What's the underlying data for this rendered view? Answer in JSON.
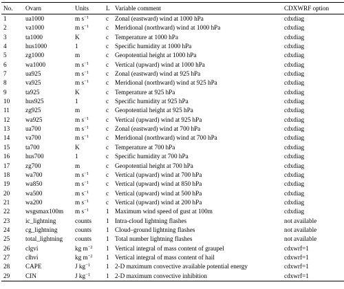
{
  "table": {
    "headers": {
      "no": "No.",
      "ovarn": "Ovarn",
      "units": "Units",
      "l": "L",
      "comment": "Variable comment",
      "option": "CDXWRF option"
    },
    "rows": [
      {
        "no": "1",
        "ovarn": "ua1000",
        "units": "m s",
        "unit_exp": "−1",
        "l": "c",
        "comment": "Zonal (eastward) wind at 1000 hPa",
        "option": "cdxdiag"
      },
      {
        "no": "2",
        "ovarn": "va1000",
        "units": "m s",
        "unit_exp": "−1",
        "l": "c",
        "comment": "Meridional (northward) wind at 1000 hPa",
        "option": "cdxdiag"
      },
      {
        "no": "3",
        "ovarn": "ta1000",
        "units": "K",
        "unit_exp": "",
        "l": "c",
        "comment": "Temperature at 1000 hPa",
        "option": "cdxdiag"
      },
      {
        "no": "4",
        "ovarn": "hus1000",
        "units": "1",
        "unit_exp": "",
        "l": "c",
        "comment": "Specific humidity at 1000 hPa",
        "option": "cdxdiag"
      },
      {
        "no": "5",
        "ovarn": "zg1000",
        "units": "m",
        "unit_exp": "",
        "l": "c",
        "comment": "Geopotential height at 1000 hPa",
        "option": "cdxdiag"
      },
      {
        "no": "6",
        "ovarn": "wa1000",
        "units": "m s",
        "unit_exp": "−1",
        "l": "c",
        "comment": "Vertical (upward) wind at 1000 hPa",
        "option": "cdxdiag"
      },
      {
        "no": "7",
        "ovarn": "ua925",
        "units": "m s",
        "unit_exp": "−1",
        "l": "c",
        "comment": "Zonal (eastward) wind at 925 hPa",
        "option": "cdxdiag"
      },
      {
        "no": "8",
        "ovarn": "va925",
        "units": "m s",
        "unit_exp": "−1",
        "l": "c",
        "comment": "Meridional (northward) wind at 925 hPa",
        "option": "cdxdiag"
      },
      {
        "no": "9",
        "ovarn": "ta925",
        "units": "K",
        "unit_exp": "",
        "l": "c",
        "comment": "Temperature at 925 hPa",
        "option": "cdxdiag"
      },
      {
        "no": "10",
        "ovarn": "hus925",
        "units": "1",
        "unit_exp": "",
        "l": "c",
        "comment": "Specific humidity at 925 hPa",
        "option": "cdxdiag"
      },
      {
        "no": "11",
        "ovarn": "zg925",
        "units": "m",
        "unit_exp": "",
        "l": "c",
        "comment": "Geopotential height at 925 hPa",
        "option": "cdxdiag"
      },
      {
        "no": "12",
        "ovarn": "wa925",
        "units": "m s",
        "unit_exp": "−1",
        "l": "c",
        "comment": "Vertical (upward) wind at 925 hPa",
        "option": "cdxdiag"
      },
      {
        "no": "13",
        "ovarn": "ua700",
        "units": "m s",
        "unit_exp": "−1",
        "l": "c",
        "comment": "Zonal (eastward) wind at 700 hPa",
        "option": "cdxdiag"
      },
      {
        "no": "14",
        "ovarn": "va700",
        "units": "m s",
        "unit_exp": "−1",
        "l": "c",
        "comment": "Meridional (northward) wind at 700 hPa",
        "option": "cdxdiag"
      },
      {
        "no": "15",
        "ovarn": "ta700",
        "units": "K",
        "unit_exp": "",
        "l": "c",
        "comment": "Temperature at 700 hPa",
        "option": "cdxdiag"
      },
      {
        "no": "16",
        "ovarn": "hus700",
        "units": "1",
        "unit_exp": "",
        "l": "c",
        "comment": "Specific humidity at 700 hPa",
        "option": "cdxdiag"
      },
      {
        "no": "17",
        "ovarn": "zg700",
        "units": "m",
        "unit_exp": "",
        "l": "c",
        "comment": "Geopotential height at 700 hPa",
        "option": "cdxdiag"
      },
      {
        "no": "18",
        "ovarn": "wa700",
        "units": "m s",
        "unit_exp": "−1",
        "l": "c",
        "comment": "Vertical (upward) wind at 700 hPa",
        "option": "cdxdiag"
      },
      {
        "no": "19",
        "ovarn": "wa850",
        "units": "m s",
        "unit_exp": "−1",
        "l": "c",
        "comment": "Vertical (upward) wind at 850 hPa",
        "option": "cdxdiag"
      },
      {
        "no": "20",
        "ovarn": "wa500",
        "units": "m s",
        "unit_exp": "−1",
        "l": "c",
        "comment": "Vertical (upward) wind at 500 hPa",
        "option": "cdxdiag"
      },
      {
        "no": "21",
        "ovarn": "wa200",
        "units": "m s",
        "unit_exp": "−1",
        "l": "c",
        "comment": "Vertical (upward) wind at 200 hPa",
        "option": "cdxdiag"
      },
      {
        "no": "22",
        "ovarn": "wsgsmax100m",
        "units": "m s",
        "unit_exp": "−1",
        "l": "1",
        "comment": "Maximum wind speed of gust at 100m",
        "option": "cdxdiag"
      },
      {
        "no": "23",
        "ovarn": "ic_lightning",
        "units": "counts",
        "unit_exp": "",
        "l": "1",
        "comment": "Intra-cloud lightning flashes",
        "option": "not available"
      },
      {
        "no": "24",
        "ovarn": "cg_lightning",
        "units": "counts",
        "unit_exp": "",
        "l": "1",
        "comment": "Cloud–ground lightning flashes",
        "option": "not available"
      },
      {
        "no": "25",
        "ovarn": "total_lightning",
        "units": "counts",
        "unit_exp": "",
        "l": "1",
        "comment": "Total number lightning flashes",
        "option": "not available"
      },
      {
        "no": "26",
        "ovarn": "clgvi",
        "units": "kg m",
        "unit_exp": "−2",
        "l": "1",
        "comment": "Vertical integral of mass content of graupel",
        "option": "cdxwrf=1"
      },
      {
        "no": "27",
        "ovarn": "clhvi",
        "units": "kg m",
        "unit_exp": "−2",
        "l": "1",
        "comment": "Vertical integral of mass content of hail",
        "option": "cdxwrf=1"
      },
      {
        "no": "28",
        "ovarn": "CAPE",
        "units": "J kg",
        "unit_exp": "−1",
        "l": "1",
        "comment": "2-D maximum convective available potential energy",
        "option": "cdxwrf=1"
      },
      {
        "no": "29",
        "ovarn": "CIN",
        "units": "J kg",
        "unit_exp": "−1",
        "l": "1",
        "comment": "2-D maximum convective inhibition",
        "option": "cdxwrf=1"
      }
    ]
  }
}
